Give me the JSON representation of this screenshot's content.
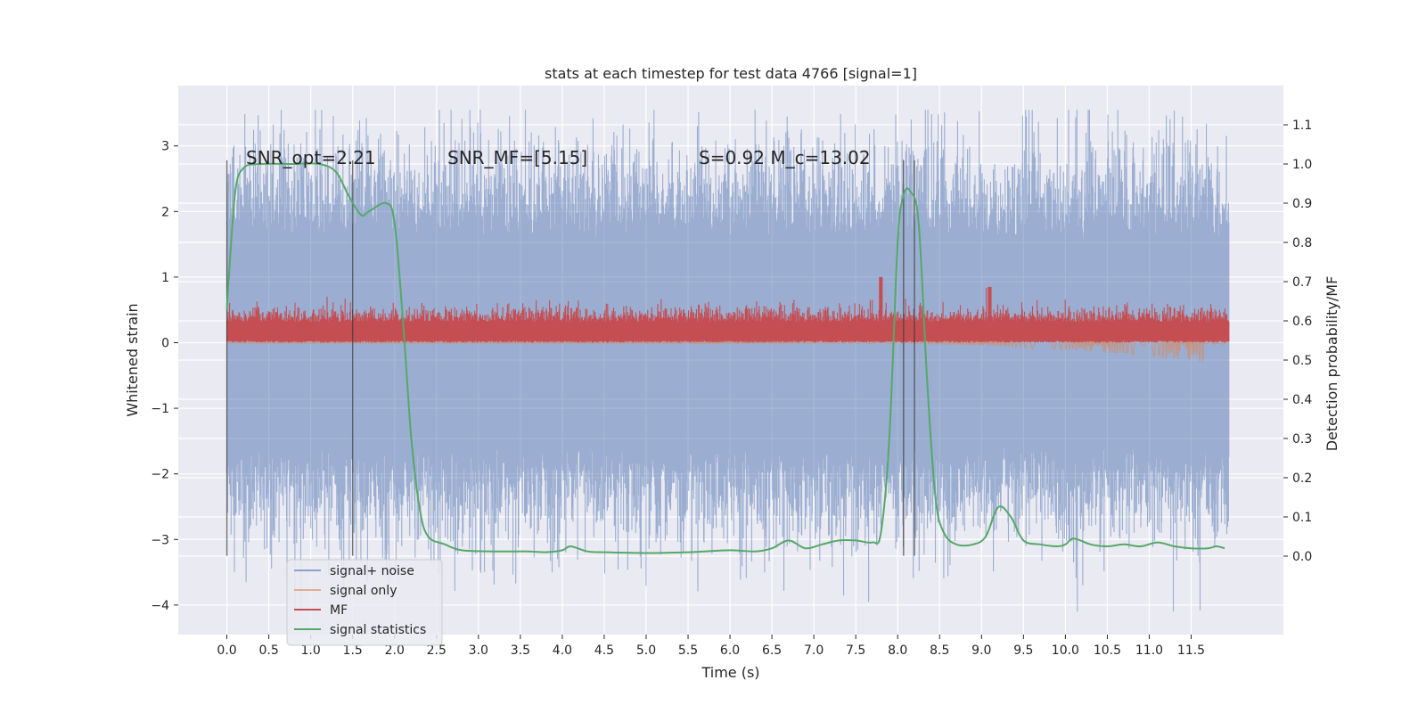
{
  "chart_data": {
    "type": "line",
    "title": "stats at each timestep for test data 4766 [signal=1]",
    "xlabel": "Time (s)",
    "ylabel": "Whitened strain",
    "ylabel_right": "Detection probability/MF",
    "xlim": [
      -0.58,
      12.6
    ],
    "ylim": [
      -4.45,
      3.92
    ],
    "ylim_right": [
      -0.2,
      1.2
    ],
    "x_ticks": [
      0.0,
      0.5,
      1.0,
      1.5,
      2.0,
      2.5,
      3.0,
      3.5,
      4.0,
      4.5,
      5.0,
      5.5,
      6.0,
      6.5,
      7.0,
      7.5,
      8.0,
      8.5,
      9.0,
      9.5,
      10.0,
      10.5,
      11.0,
      11.5
    ],
    "x_tick_labels": [
      "0.0",
      "0.5",
      "1.0",
      "1.5",
      "2.0",
      "2.5",
      "3.0",
      "3.5",
      "4.0",
      "4.5",
      "5.0",
      "5.5",
      "6.0",
      "6.5",
      "7.0",
      "7.5",
      "8.0",
      "8.5",
      "9.0",
      "9.5",
      "10.0",
      "10.5",
      "11.0",
      "11.5"
    ],
    "y_ticks": [
      -4,
      -3,
      -2,
      -1,
      0,
      1,
      2,
      3
    ],
    "y_tick_labels": [
      "−4",
      "−3",
      "−2",
      "−1",
      "0",
      "1",
      "2",
      "3"
    ],
    "y_ticks_right": [
      0.0,
      0.1,
      0.2,
      0.3,
      0.4,
      0.5,
      0.6,
      0.7,
      0.8,
      0.9,
      1.0,
      1.1
    ],
    "y_tick_labels_right": [
      "0.0",
      "0.1",
      "0.2",
      "0.3",
      "0.4",
      "0.5",
      "0.6",
      "0.7",
      "0.8",
      "0.9",
      "1.0",
      "1.1"
    ],
    "grid": true,
    "legend_position": "bottom-left",
    "annotations": {
      "snr_opt": "SNR_opt=2.21",
      "snr_mf": "SNR_MF=[5.15]",
      "s_mc": "S=0.92   M_c=13.02"
    },
    "vertical_markers": [
      0.0,
      1.5,
      8.07,
      8.2
    ],
    "series": [
      {
        "name": "signal+ noise",
        "color": "#4c72b0",
        "x_range": [
          0.0,
          11.95
        ],
        "envelope_typical": [
          -1.6,
          1.6
        ],
        "peak_max": 3.55,
        "peak_min": -4.1
      },
      {
        "name": "signal only",
        "color": "#dd8452",
        "x_range": [
          0.0,
          11.95
        ],
        "shape": "chirp",
        "max_amplitude": 0.3,
        "peak_time": 11.65
      },
      {
        "name": "MF",
        "color": "#c44e52",
        "x_range": [
          0.0,
          11.95
        ],
        "range_typical": [
          0.0,
          0.5
        ],
        "peak_max": 1.0
      },
      {
        "name": "signal statistics",
        "color": "#55a868",
        "x": [
          0.0,
          0.02,
          0.1,
          0.2,
          0.4,
          0.8,
          1.1,
          1.3,
          1.45,
          1.6,
          1.7,
          1.9,
          2.0,
          2.1,
          2.2,
          2.3,
          2.4,
          2.6,
          2.8,
          3.2,
          3.6,
          3.8,
          4.0,
          4.1,
          4.3,
          4.5,
          5.0,
          5.5,
          6.0,
          6.3,
          6.5,
          6.7,
          6.9,
          7.1,
          7.3,
          7.5,
          7.7,
          7.8,
          7.9,
          8.0,
          8.07,
          8.15,
          8.25,
          8.35,
          8.45,
          8.55,
          8.7,
          8.9,
          9.05,
          9.2,
          9.35,
          9.5,
          9.7,
          9.9,
          10.0,
          10.1,
          10.3,
          10.5,
          10.7,
          10.9,
          11.1,
          11.3,
          11.5,
          11.7,
          11.8,
          11.9
        ],
        "y": [
          0.63,
          0.7,
          0.93,
          0.99,
          1.0,
          1.0,
          1.0,
          0.98,
          0.92,
          0.87,
          0.88,
          0.9,
          0.85,
          0.6,
          0.3,
          0.12,
          0.05,
          0.03,
          0.015,
          0.012,
          0.012,
          0.01,
          0.015,
          0.025,
          0.012,
          0.01,
          0.008,
          0.01,
          0.015,
          0.012,
          0.02,
          0.04,
          0.02,
          0.03,
          0.04,
          0.04,
          0.035,
          0.06,
          0.3,
          0.8,
          0.92,
          0.93,
          0.85,
          0.45,
          0.15,
          0.06,
          0.03,
          0.03,
          0.05,
          0.125,
          0.1,
          0.04,
          0.03,
          0.025,
          0.03,
          0.045,
          0.03,
          0.025,
          0.03,
          0.025,
          0.035,
          0.025,
          0.02,
          0.02,
          0.025,
          0.02
        ]
      }
    ]
  }
}
